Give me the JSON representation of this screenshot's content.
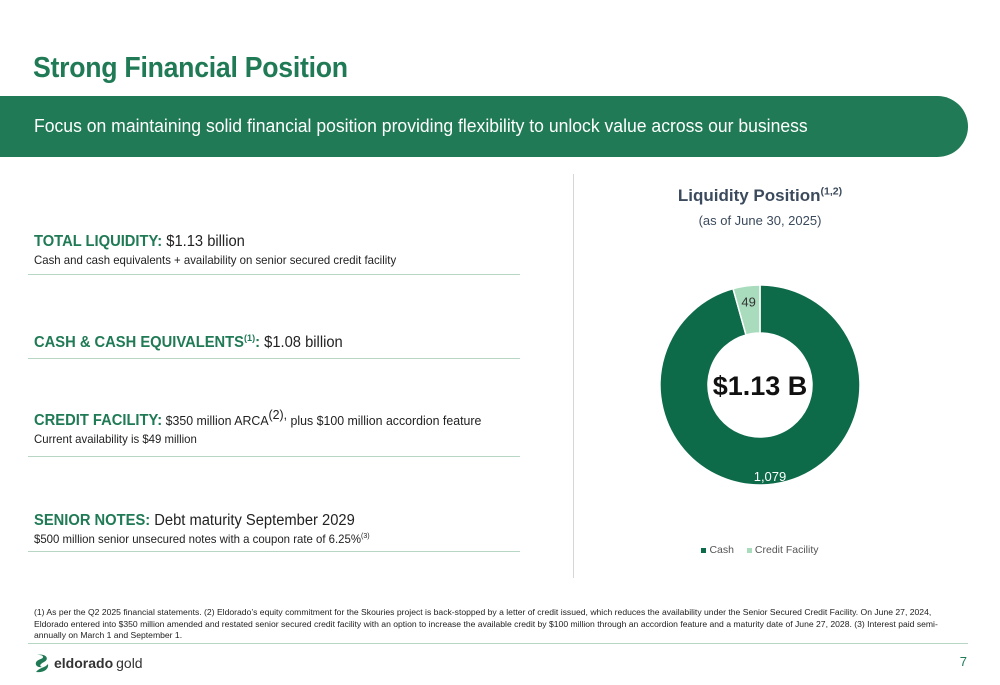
{
  "title": "Strong Financial Position",
  "banner": "Focus on maintaining solid financial position providing flexibility to unlock value across our business",
  "liquidity": {
    "key": "TOTAL LIQUIDITY:",
    "value": " $1.13 billion",
    "sub": "Cash and cash equivalents + availability on senior secured credit facility"
  },
  "cash": {
    "key": "CASH & CASH EQUIVALENTS",
    "sup": "(1)",
    "colon": ":",
    "value": " $1.08 billion"
  },
  "credit": {
    "key": "CREDIT FACILITY:",
    "value_a": " $350 million ARCA",
    "sup": "(2),",
    "value_b": " plus $100 million accordion feature",
    "sub": "Current availability is $49 million"
  },
  "notes": {
    "key": "SENIOR NOTES:",
    "value": " Debt maturity September 2029",
    "sub": "$500 million senior unsecured notes with a coupon rate of 6.25%",
    "sub_sup": "(3)"
  },
  "chart_title": "Liquidity Position",
  "chart_title_sup": "(1,2)",
  "chart_sub": "(as of June 30, 2025)",
  "chart_data": {
    "type": "pie",
    "categories": [
      "Cash",
      "Credit Facility"
    ],
    "values": [
      1079,
      49
    ],
    "data_labels": [
      "1,079",
      "49"
    ],
    "center_label": "$1.13 B",
    "colors": [
      "#0e6b4a",
      "#a9dbbd"
    ],
    "legend_position": "bottom"
  },
  "footnote": "(1) As per the Q2 2025 financial statements. (2) Eldorado’s equity commitment for the Skouries project is back-stopped by a letter of credit issued, which reduces the availability under the Senior Secured Credit Facility. On June 27, 2024, Eldorado entered into $350 million amended and restated senior secured credit facility with an option to increase the available credit by $100 million through an accordion feature and a maturity date of June 27, 2028. (3) Interest paid semi-annually on March 1 and September 1.",
  "logo": {
    "brand": "eldorado",
    "brand2": "gold"
  },
  "page_number": "7"
}
